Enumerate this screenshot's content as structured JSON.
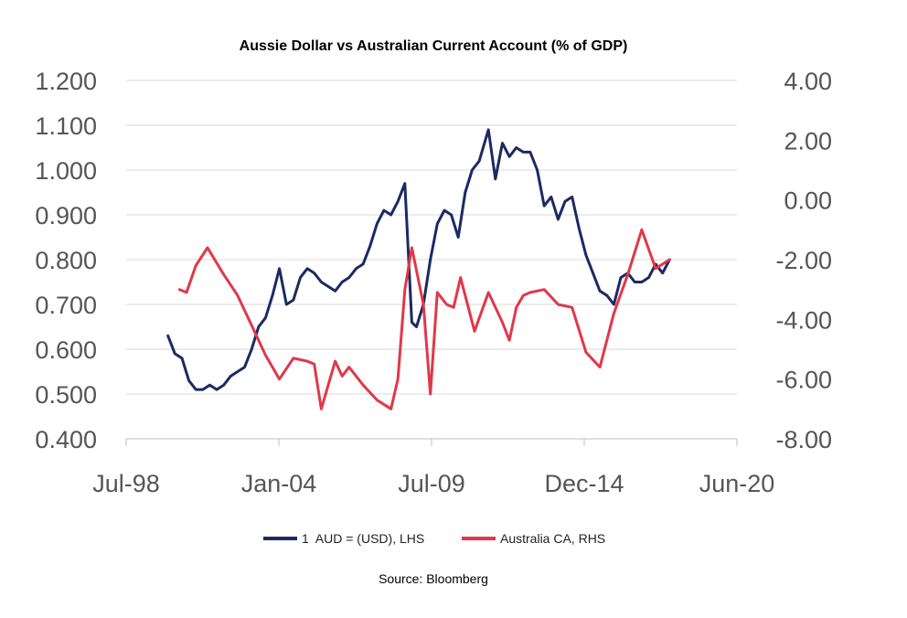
{
  "chart_data": {
    "type": "line",
    "title": "Aussie Dollar vs Australian Current Account (% of GDP)",
    "source": "Source: Bloomberg",
    "x_ticks": [
      "Jul-98",
      "Jan-04",
      "Jul-09",
      "Dec-14",
      "Jun-20"
    ],
    "x_range": [
      "1998-07",
      "2020-06"
    ],
    "y_left": {
      "ticks": [
        "1.200",
        "1.100",
        "1.000",
        "0.900",
        "0.800",
        "0.700",
        "0.600",
        "0.500",
        "0.400"
      ],
      "ylim": [
        0.4,
        1.2
      ]
    },
    "y_right": {
      "ticks": [
        "4.00",
        "2.00",
        "0.00",
        "-2.00",
        "-4.00",
        "-6.00",
        "-8.00"
      ],
      "ylim": [
        -8,
        4
      ]
    },
    "grid": true,
    "legend_position": "bottom",
    "series": [
      {
        "name": "1  AUD = (USD), LHS",
        "axis": "left",
        "color": "#1b2a63",
        "x": [
          "2000-01",
          "2000-04",
          "2000-07",
          "2000-10",
          "2001-01",
          "2001-04",
          "2001-07",
          "2001-10",
          "2002-01",
          "2002-04",
          "2002-07",
          "2002-10",
          "2003-01",
          "2003-04",
          "2003-07",
          "2003-10",
          "2004-01",
          "2004-04",
          "2004-07",
          "2004-10",
          "2005-01",
          "2005-04",
          "2005-07",
          "2005-10",
          "2006-01",
          "2006-04",
          "2006-07",
          "2006-10",
          "2007-01",
          "2007-04",
          "2007-07",
          "2007-10",
          "2008-01",
          "2008-04",
          "2008-07",
          "2008-10",
          "2008-12",
          "2009-03",
          "2009-06",
          "2009-09",
          "2009-12",
          "2010-03",
          "2010-06",
          "2010-09",
          "2010-12",
          "2011-03",
          "2011-07",
          "2011-10",
          "2012-01",
          "2012-04",
          "2012-07",
          "2012-10",
          "2013-01",
          "2013-04",
          "2013-07",
          "2013-10",
          "2014-01",
          "2014-04",
          "2014-07",
          "2014-10",
          "2015-01",
          "2015-04",
          "2015-07",
          "2015-10",
          "2016-01",
          "2016-04",
          "2016-07",
          "2016-10",
          "2017-01",
          "2017-04",
          "2017-07",
          "2017-10",
          "2018-01"
        ],
        "values": [
          0.63,
          0.59,
          0.58,
          0.53,
          0.51,
          0.51,
          0.52,
          0.51,
          0.52,
          0.54,
          0.55,
          0.56,
          0.6,
          0.65,
          0.67,
          0.72,
          0.78,
          0.7,
          0.71,
          0.76,
          0.78,
          0.77,
          0.75,
          0.74,
          0.73,
          0.75,
          0.76,
          0.78,
          0.79,
          0.83,
          0.88,
          0.91,
          0.9,
          0.93,
          0.97,
          0.66,
          0.65,
          0.7,
          0.8,
          0.88,
          0.91,
          0.9,
          0.85,
          0.95,
          1.0,
          1.02,
          1.09,
          0.98,
          1.06,
          1.03,
          1.05,
          1.04,
          1.04,
          1.0,
          0.92,
          0.94,
          0.89,
          0.93,
          0.94,
          0.87,
          0.81,
          0.77,
          0.73,
          0.72,
          0.7,
          0.76,
          0.77,
          0.75,
          0.75,
          0.76,
          0.79,
          0.77,
          0.8
        ]
      },
      {
        "name": "Australia CA, RHS",
        "axis": "right",
        "color": "#e0384a",
        "x": [
          "2000-06",
          "2000-09",
          "2001-01",
          "2001-06",
          "2002-01",
          "2002-07",
          "2003-01",
          "2003-07",
          "2004-01",
          "2004-07",
          "2005-01",
          "2005-04",
          "2005-07",
          "2006-01",
          "2006-04",
          "2006-07",
          "2007-01",
          "2007-07",
          "2008-01",
          "2008-04",
          "2008-07",
          "2008-10",
          "2009-03",
          "2009-06",
          "2009-09",
          "2010-01",
          "2010-04",
          "2010-07",
          "2011-01",
          "2011-07",
          "2012-01",
          "2012-04",
          "2012-07",
          "2012-10",
          "2013-01",
          "2013-07",
          "2014-01",
          "2014-07",
          "2015-01",
          "2015-07",
          "2016-01",
          "2016-07",
          "2017-01",
          "2017-07",
          "2018-01"
        ],
        "values": [
          -3.0,
          -3.1,
          -2.2,
          -1.6,
          -2.5,
          -3.2,
          -4.2,
          -5.2,
          -6.0,
          -5.3,
          -5.4,
          -5.5,
          -7.0,
          -5.4,
          -5.9,
          -5.6,
          -6.2,
          -6.7,
          -7.0,
          -6.0,
          -3.0,
          -1.6,
          -3.5,
          -6.5,
          -3.1,
          -3.5,
          -3.6,
          -2.6,
          -4.4,
          -3.1,
          -4.1,
          -4.7,
          -3.6,
          -3.2,
          -3.1,
          -3.0,
          -3.5,
          -3.6,
          -5.1,
          -5.6,
          -3.8,
          -2.5,
          -1.0,
          -2.3,
          -2.0
        ]
      }
    ]
  }
}
